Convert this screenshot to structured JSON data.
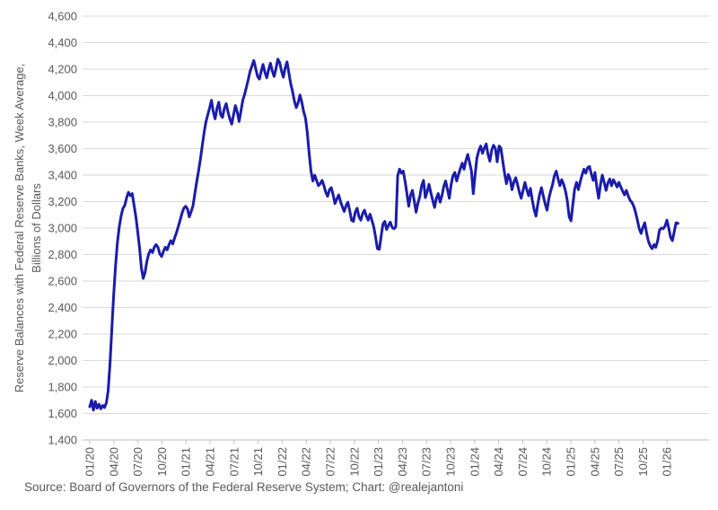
{
  "chart_data": {
    "type": "line",
    "title": "",
    "ylabel_line1": "Reserve Balances with Federal Reserve Banks, Week Average,",
    "ylabel_line2": "Billions of Dollars",
    "ylim": [
      1400,
      4600
    ],
    "y_ticks": [
      1400,
      1600,
      1800,
      2000,
      2200,
      2400,
      2600,
      2800,
      3000,
      3200,
      3400,
      3600,
      3800,
      4000,
      4200,
      4400,
      4600
    ],
    "x_tick_labels": [
      "01/20",
      "04/20",
      "07/20",
      "10/20",
      "01/21",
      "04/21",
      "07/21",
      "10/21",
      "01/22",
      "04/22",
      "07/22",
      "10/22",
      "01/23",
      "04/23",
      "07/23",
      "10/23",
      "01/24",
      "04/24",
      "07/24",
      "10/24",
      "01/25",
      "04/25",
      "07/25",
      "10/25",
      "01/26"
    ],
    "grid": true,
    "legend": "none",
    "series": [
      {
        "name": "Reserve Balances with Federal Reserve Banks, Week Average, Billions of Dollars",
        "color": "#1a1caa",
        "start_date": "2020-01-01",
        "step_days": 7,
        "values": [
          1650,
          1700,
          1625,
          1690,
          1640,
          1670,
          1635,
          1660,
          1645,
          1680,
          1770,
          1980,
          2250,
          2500,
          2720,
          2890,
          3010,
          3090,
          3150,
          3170,
          3230,
          3270,
          3245,
          3260,
          3175,
          3085,
          2975,
          2850,
          2700,
          2620,
          2665,
          2750,
          2805,
          2835,
          2815,
          2855,
          2875,
          2855,
          2805,
          2785,
          2825,
          2855,
          2835,
          2875,
          2905,
          2880,
          2925,
          2965,
          3010,
          3060,
          3110,
          3150,
          3165,
          3145,
          3085,
          3125,
          3170,
          3260,
          3350,
          3430,
          3520,
          3620,
          3720,
          3800,
          3855,
          3905,
          3965,
          3875,
          3825,
          3905,
          3950,
          3855,
          3835,
          3905,
          3940,
          3875,
          3825,
          3785,
          3855,
          3925,
          3875,
          3805,
          3885,
          3965,
          4010,
          4065,
          4125,
          4185,
          4225,
          4265,
          4205,
          4145,
          4125,
          4185,
          4235,
          4175,
          4135,
          4195,
          4245,
          4185,
          4145,
          4205,
          4275,
          4250,
          4185,
          4140,
          4210,
          4255,
          4170,
          4090,
          4030,
          3960,
          3910,
          3945,
          4005,
          3950,
          3880,
          3830,
          3720,
          3560,
          3430,
          3355,
          3400,
          3360,
          3320,
          3335,
          3360,
          3320,
          3270,
          3240,
          3290,
          3305,
          3250,
          3185,
          3220,
          3250,
          3200,
          3160,
          3125,
          3170,
          3195,
          3130,
          3060,
          3050,
          3120,
          3150,
          3085,
          3060,
          3110,
          3135,
          3090,
          3060,
          3105,
          3060,
          3010,
          2935,
          2845,
          2840,
          2935,
          3030,
          3050,
          2990,
          3020,
          3045,
          3005,
          2995,
          3010,
          3395,
          3445,
          3415,
          3430,
          3355,
          3260,
          3165,
          3250,
          3285,
          3205,
          3120,
          3190,
          3240,
          3320,
          3360,
          3230,
          3275,
          3330,
          3265,
          3210,
          3155,
          3225,
          3260,
          3195,
          3245,
          3315,
          3355,
          3290,
          3225,
          3330,
          3395,
          3420,
          3355,
          3405,
          3450,
          3490,
          3445,
          3510,
          3555,
          3495,
          3430,
          3260,
          3405,
          3530,
          3585,
          3620,
          3565,
          3605,
          3635,
          3555,
          3505,
          3590,
          3625,
          3600,
          3500,
          3620,
          3605,
          3505,
          3410,
          3335,
          3405,
          3370,
          3290,
          3345,
          3380,
          3330,
          3270,
          3225,
          3285,
          3345,
          3290,
          3245,
          3300,
          3210,
          3140,
          3090,
          3180,
          3255,
          3305,
          3240,
          3180,
          3135,
          3225,
          3280,
          3330,
          3395,
          3430,
          3370,
          3320,
          3365,
          3330,
          3280,
          3205,
          3085,
          3055,
          3180,
          3295,
          3345,
          3290,
          3350,
          3400,
          3445,
          3415,
          3455,
          3465,
          3410,
          3360,
          3420,
          3310,
          3225,
          3330,
          3400,
          3345,
          3285,
          3340,
          3370,
          3320,
          3365,
          3340,
          3310,
          3345,
          3310,
          3280,
          3250,
          3285,
          3245,
          3210,
          3195,
          3165,
          3120,
          3060,
          2995,
          2960,
          3005,
          3040,
          2960,
          2900,
          2865,
          2845,
          2875,
          2855,
          2905,
          2985,
          3000,
          2995,
          3015,
          3060,
          3000,
          2930,
          2905,
          2975,
          3040,
          3035
        ]
      }
    ]
  },
  "footer": {
    "source_text": "Source: Board of Governors of the Federal Reserve System; Chart: @realejantoni"
  },
  "colors": {
    "line": "#1a1caa",
    "gridline": "#d9d9d9",
    "axis_line": "#bfbfbf",
    "tick_mark": "#bfbfbf",
    "label_text": "#595959",
    "background": "#ffffff"
  }
}
